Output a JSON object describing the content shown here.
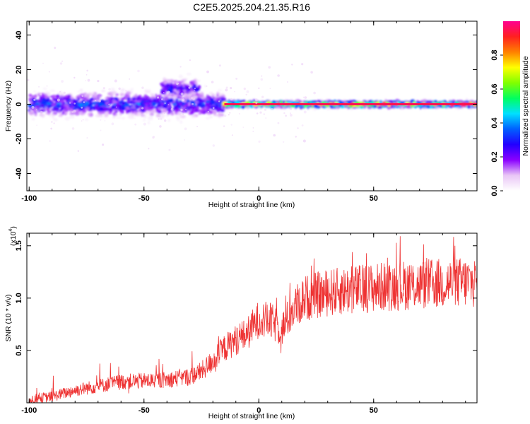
{
  "title": "C2E5.2025.204.21.35.R16",
  "chart_data": [
    {
      "type": "heatmap",
      "xlabel": "Height of straight line (km)",
      "ylabel": "Frequency (Hz)",
      "xlim": [
        -101,
        95
      ],
      "ylim": [
        -50,
        48
      ],
      "x_ticks": [
        -100,
        -50,
        0,
        50
      ],
      "y_ticks": [
        -40,
        -20,
        0,
        20,
        40
      ],
      "colorbar": {
        "label": "Normalized spectral amplitude",
        "range": [
          0,
          1
        ],
        "ticks": [
          "0.0",
          "0.2",
          "0.4",
          "0.6",
          "0.8"
        ],
        "colors": [
          "#ffffff",
          "#e9c6f6",
          "#8a00ff",
          "#2200ff",
          "#0060ff",
          "#00e0ff",
          "#00ff60",
          "#80ff00",
          "#ffff00",
          "#ff8000",
          "#ff2020",
          "#ff0090"
        ]
      },
      "ridge": [
        {
          "x_start": -100,
          "x_end": -15,
          "center_hz": 0,
          "spread_hz": 6,
          "peak_amplitude": 0.35
        },
        {
          "x_start": -42,
          "x_end": -26,
          "center_hz": 9,
          "spread_hz": 5,
          "peak_amplitude": 0.3
        },
        {
          "x_start": -15,
          "x_end": 95,
          "center_hz": 0,
          "spread_hz": 1.5,
          "peak_amplitude": 0.95
        }
      ]
    },
    {
      "type": "line",
      "xlabel": "Height of straight line (km)",
      "ylabel": "SNR (10 * v/v)",
      "y_multiplier": "(x10",
      "y_multiplier_exp": "4",
      "xlim": [
        -101,
        95
      ],
      "ylim": [
        0,
        1.62
      ],
      "x_ticks": [
        -100,
        -50,
        0,
        50
      ],
      "y_ticks": [
        0.5,
        1.0,
        1.5
      ],
      "color": "#ee3333",
      "series": [
        {
          "x": [
            -100,
            -90,
            -80,
            -70,
            -60,
            -50,
            -40,
            -30,
            -25,
            -20,
            -15,
            -10,
            -5,
            0,
            5,
            10,
            15,
            20,
            30,
            40,
            50,
            60,
            70,
            80,
            90,
            95
          ],
          "y": [
            0.03,
            0.06,
            0.12,
            0.16,
            0.2,
            0.21,
            0.22,
            0.25,
            0.3,
            0.4,
            0.52,
            0.6,
            0.66,
            0.8,
            0.78,
            0.7,
            0.9,
            1.0,
            1.05,
            1.08,
            1.1,
            1.12,
            1.13,
            1.14,
            1.15,
            1.15
          ]
        }
      ]
    }
  ]
}
